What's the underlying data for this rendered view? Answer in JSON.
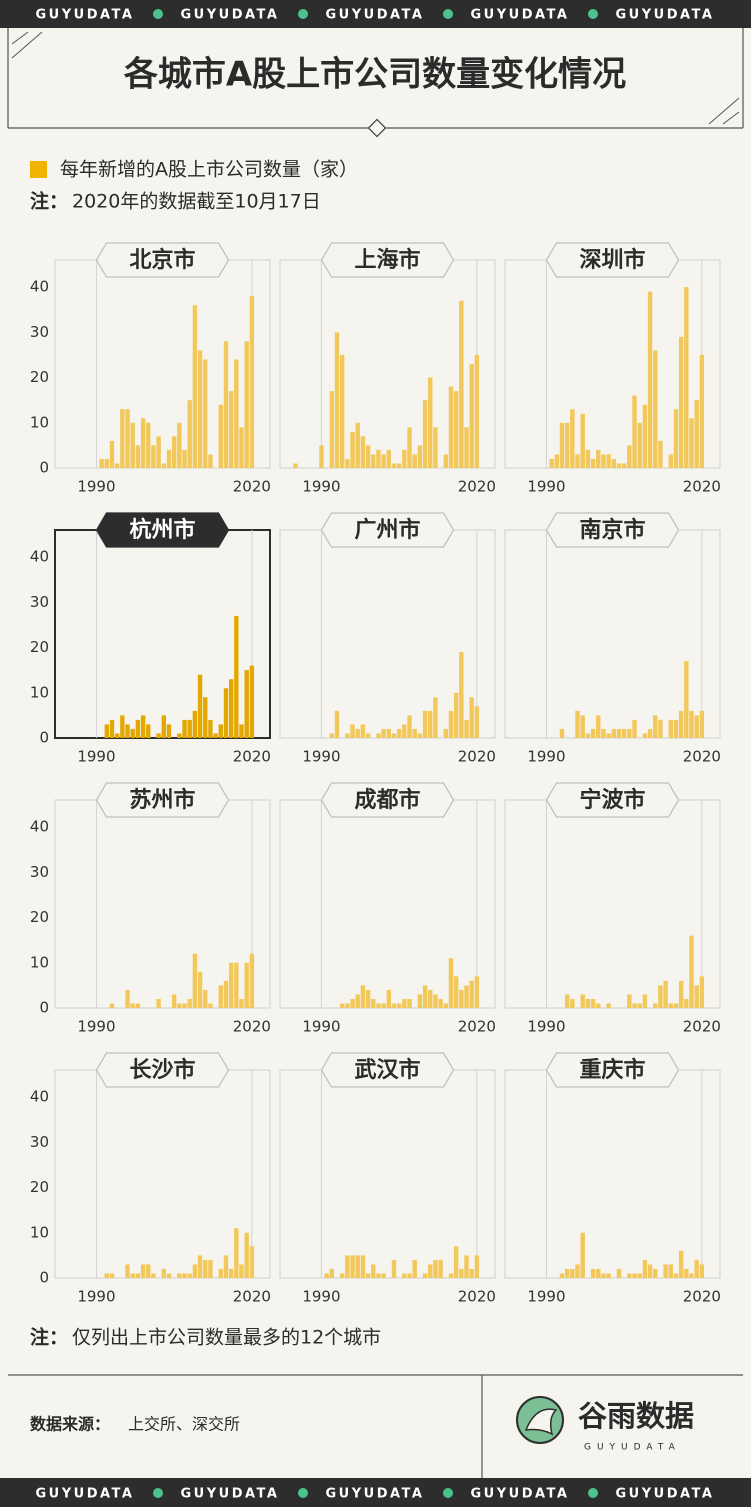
{
  "banner": "GUYUDATA",
  "title": "各城市A股上市公司数量变化情况",
  "legend": "每年新增的A股上市公司数量（家）",
  "legend_color": "#f0b400",
  "note_label": "注：",
  "note": "2020年的数据截至10月17日",
  "footer_note": "仅列出上市公司数量最多的12个城市",
  "source_label": "数据来源：",
  "source": "上交所、深交所",
  "logo": "谷雨数据",
  "logo_sub": "GUYUDATA",
  "chart_data": {
    "type": "bar",
    "x": [
      1985,
      1986,
      1987,
      1988,
      1989,
      1990,
      1991,
      1992,
      1993,
      1994,
      1995,
      1996,
      1997,
      1998,
      1999,
      2000,
      2001,
      2002,
      2003,
      2004,
      2005,
      2006,
      2007,
      2008,
      2009,
      2010,
      2011,
      2012,
      2013,
      2014,
      2015,
      2016,
      2017,
      2018,
      2019,
      2020
    ],
    "xlim": [
      1982,
      2023.5
    ],
    "xticks": [
      1990,
      2020
    ],
    "ylim": [
      0,
      46
    ],
    "yticks": [
      0,
      10,
      20,
      30,
      40
    ],
    "grid": true,
    "series": [
      {
        "name": "北京市",
        "color": "#f2c85b",
        "values": [
          0,
          0,
          0,
          0,
          0,
          0,
          2,
          2,
          6,
          1,
          13,
          13,
          10,
          5,
          11,
          10,
          5,
          7,
          1,
          4,
          7,
          10,
          4,
          15,
          36,
          26,
          24,
          3,
          0,
          14,
          28,
          17,
          24,
          9,
          28,
          38
        ]
      },
      {
        "name": "上海市",
        "color": "#f2c85b",
        "values": [
          1,
          0,
          0,
          0,
          0,
          5,
          0,
          17,
          30,
          25,
          2,
          8,
          10,
          7,
          5,
          3,
          4,
          3,
          4,
          1,
          1,
          4,
          9,
          3,
          5,
          15,
          20,
          9,
          0,
          3,
          18,
          17,
          37,
          9,
          23,
          25
        ]
      },
      {
        "name": "深圳市",
        "color": "#f2c85b",
        "values": [
          0,
          0,
          0,
          0,
          0,
          0,
          2,
          3,
          10,
          10,
          13,
          3,
          12,
          4,
          2,
          4,
          3,
          3,
          2,
          1,
          1,
          5,
          16,
          10,
          14,
          39,
          26,
          6,
          0,
          3,
          13,
          29,
          40,
          11,
          15,
          25
        ]
      },
      {
        "name": "杭州市",
        "color": "#e3a800",
        "highlight": true,
        "values": [
          0,
          0,
          0,
          0,
          0,
          0,
          0,
          3,
          4,
          1,
          5,
          3,
          2,
          4,
          5,
          3,
          0,
          1,
          5,
          3,
          0,
          1,
          4,
          4,
          6,
          14,
          9,
          4,
          1,
          3,
          11,
          13,
          27,
          3,
          15,
          16
        ]
      },
      {
        "name": "广州市",
        "color": "#f2c85b",
        "values": [
          0,
          0,
          0,
          0,
          0,
          0,
          0,
          1,
          6,
          0,
          1,
          3,
          2,
          3,
          1,
          0,
          1,
          2,
          2,
          1,
          2,
          3,
          5,
          2,
          1,
          6,
          6,
          9,
          0,
          2,
          6,
          10,
          19,
          4,
          9,
          7
        ]
      },
      {
        "name": "南京市",
        "color": "#f2c85b",
        "values": [
          0,
          0,
          0,
          0,
          0,
          0,
          0,
          0,
          2,
          0,
          0,
          6,
          5,
          1,
          2,
          5,
          2,
          1,
          2,
          2,
          2,
          2,
          4,
          0,
          1,
          2,
          5,
          4,
          0,
          4,
          4,
          6,
          17,
          6,
          5,
          6
        ]
      },
      {
        "name": "苏州市",
        "color": "#f2c85b",
        "values": [
          0,
          0,
          0,
          0,
          0,
          0,
          0,
          0,
          1,
          0,
          0,
          4,
          1,
          1,
          0,
          0,
          0,
          2,
          0,
          0,
          3,
          1,
          1,
          2,
          12,
          8,
          4,
          1,
          0,
          5,
          6,
          10,
          10,
          2,
          10,
          12
        ]
      },
      {
        "name": "成都市",
        "color": "#f2c85b",
        "values": [
          0,
          0,
          0,
          0,
          0,
          0,
          0,
          0,
          0,
          1,
          1,
          2,
          3,
          5,
          4,
          2,
          1,
          1,
          4,
          1,
          1,
          2,
          2,
          0,
          3,
          5,
          4,
          3,
          2,
          1,
          11,
          7,
          4,
          5,
          6,
          7
        ]
      },
      {
        "name": "宁波市",
        "color": "#f2c85b",
        "values": [
          0,
          0,
          0,
          0,
          0,
          0,
          0,
          0,
          0,
          3,
          2,
          0,
          3,
          2,
          2,
          1,
          0,
          1,
          0,
          0,
          0,
          3,
          1,
          1,
          3,
          0,
          1,
          5,
          6,
          1,
          1,
          6,
          2,
          16,
          5,
          7
        ]
      },
      {
        "name": "长沙市",
        "color": "#f2c85b",
        "values": [
          0,
          0,
          0,
          0,
          0,
          0,
          0,
          1,
          1,
          0,
          0,
          3,
          1,
          1,
          3,
          3,
          1,
          0,
          2,
          1,
          0,
          1,
          1,
          1,
          3,
          5,
          4,
          4,
          0,
          2,
          5,
          2,
          11,
          3,
          10,
          7
        ]
      },
      {
        "name": "武汉市",
        "color": "#f2c85b",
        "values": [
          0,
          0,
          0,
          0,
          0,
          0,
          1,
          2,
          0,
          1,
          5,
          5,
          5,
          5,
          1,
          3,
          1,
          1,
          0,
          4,
          0,
          1,
          1,
          4,
          0,
          1,
          3,
          4,
          4,
          0,
          1,
          7,
          2,
          5,
          2,
          5
        ]
      },
      {
        "name": "重庆市",
        "color": "#f2c85b",
        "values": [
          0,
          0,
          0,
          0,
          0,
          0,
          0,
          0,
          1,
          2,
          2,
          3,
          10,
          0,
          2,
          2,
          1,
          1,
          0,
          2,
          0,
          1,
          1,
          1,
          4,
          3,
          2,
          0,
          3,
          3,
          1,
          6,
          2,
          1,
          4,
          3
        ]
      }
    ]
  }
}
